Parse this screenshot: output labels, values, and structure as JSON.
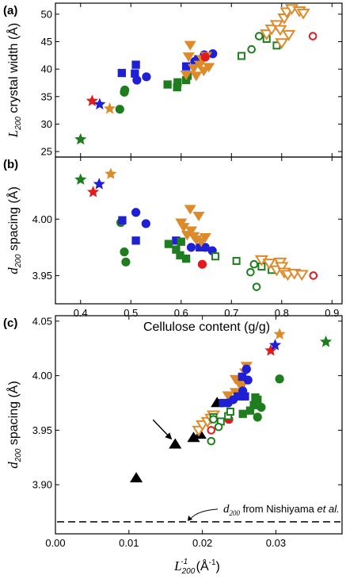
{
  "chart_data": [
    {
      "panel_label": "(a)",
      "type": "scatter",
      "ylabel_main": "L",
      "ylabel_sub": "200",
      "ylabel_rest": " crystal width (Å)",
      "xlim": [
        0.35,
        0.92
      ],
      "ylim": [
        24,
        52
      ],
      "xticks": [
        0.4,
        0.5,
        0.6,
        0.7,
        0.8,
        0.9
      ],
      "yticks": [
        25,
        30,
        35,
        40,
        45,
        50
      ],
      "series": [
        {
          "marker": "star",
          "color": "#1e7d1e",
          "fill": true,
          "points": [
            [
              0.4,
              27.2
            ]
          ]
        },
        {
          "marker": "star",
          "color": "#e31a1c",
          "fill": true,
          "points": [
            [
              0.423,
              34.2
            ]
          ]
        },
        {
          "marker": "star",
          "color": "#1f1fd6",
          "fill": true,
          "points": [
            [
              0.438,
              33.6
            ]
          ]
        },
        {
          "marker": "star",
          "color": "#dd8a2b",
          "fill": true,
          "points": [
            [
              0.458,
              32.8
            ]
          ]
        },
        {
          "marker": "circle",
          "color": "#1e7d1e",
          "fill": true,
          "points": [
            [
              0.478,
              32.7
            ],
            [
              0.487,
              35.8
            ],
            [
              0.488,
              36.2
            ]
          ]
        },
        {
          "marker": "square",
          "color": "#1f1fd6",
          "fill": true,
          "points": [
            [
              0.482,
              39.3
            ],
            [
              0.51,
              40.8
            ],
            [
              0.508,
              39.2
            ],
            [
              0.61,
              40.5
            ],
            [
              0.634,
              41.8
            ]
          ]
        },
        {
          "marker": "circle",
          "color": "#1f1fd6",
          "fill": true,
          "points": [
            [
              0.512,
              38.0
            ],
            [
              0.531,
              38.6
            ],
            [
              0.627,
              41.4
            ],
            [
              0.646,
              42.6
            ],
            [
              0.663,
              42.8
            ]
          ]
        },
        {
          "marker": "square",
          "color": "#1e7d1e",
          "fill": true,
          "points": [
            [
              0.573,
              37.2
            ],
            [
              0.592,
              36.7
            ],
            [
              0.593,
              37.6
            ],
            [
              0.61,
              38.0
            ],
            [
              0.613,
              38.8
            ]
          ]
        },
        {
          "marker": "tri-down",
          "color": "#dd8a2b",
          "fill": true,
          "points": [
            [
              0.61,
              39.0
            ],
            [
              0.615,
              42.3
            ],
            [
              0.618,
              44.4
            ],
            [
              0.625,
              40.2
            ],
            [
              0.63,
              38.8
            ],
            [
              0.637,
              40.8
            ],
            [
              0.642,
              41.8
            ],
            [
              0.645,
              39.7
            ],
            [
              0.65,
              42.4
            ],
            [
              0.655,
              40.4
            ]
          ]
        },
        {
          "marker": "circle",
          "color": "#e31a1c",
          "fill": true,
          "points": [
            [
              0.648,
              42.2
            ]
          ]
        },
        {
          "marker": "square",
          "color": "#1e7d1e",
          "fill": false,
          "points": [
            [
              0.72,
              42.4
            ],
            [
              0.77,
              45.5
            ],
            [
              0.79,
              44.3
            ]
          ]
        },
        {
          "marker": "circle",
          "color": "#1e7d1e",
          "fill": false,
          "points": [
            [
              0.74,
              43.6
            ],
            [
              0.755,
              46.0
            ]
          ]
        },
        {
          "marker": "tri-down",
          "color": "#dd8a2b",
          "fill": false,
          "points": [
            [
              0.77,
              46.4
            ],
            [
              0.78,
              47.3
            ],
            [
              0.79,
              48.1
            ],
            [
              0.797,
              47.2
            ],
            [
              0.8,
              44.8
            ],
            [
              0.805,
              49.3
            ],
            [
              0.81,
              50.4
            ],
            [
              0.814,
              46.3
            ],
            [
              0.82,
              51.0
            ],
            [
              0.835,
              50.6
            ],
            [
              0.843,
              50.2
            ]
          ]
        },
        {
          "marker": "circle",
          "color": "#e31a1c",
          "fill": false,
          "points": [
            [
              0.862,
              46.0
            ]
          ]
        }
      ]
    },
    {
      "panel_label": "(b)",
      "type": "scatter",
      "ylabel_main": "d",
      "ylabel_sub": "200",
      "ylabel_rest": " spacing (Å)",
      "xlabel": "Cellulose content (g/g)",
      "xlim": [
        0.35,
        0.92
      ],
      "ylim": [
        3.925,
        4.055
      ],
      "xticks": [
        0.4,
        0.5,
        0.6,
        0.7,
        0.8,
        0.9
      ],
      "ytick_values": [
        3.95,
        4.0
      ],
      "ytick_labels": [
        "3.95",
        "4.00"
      ],
      "series": [
        {
          "marker": "star",
          "color": "#1e7d1e",
          "fill": true,
          "points": [
            [
              0.4,
              4.035
            ]
          ]
        },
        {
          "marker": "star",
          "color": "#e31a1c",
          "fill": true,
          "points": [
            [
              0.425,
              4.024
            ]
          ]
        },
        {
          "marker": "star",
          "color": "#1f1fd6",
          "fill": true,
          "points": [
            [
              0.437,
              4.031
            ]
          ]
        },
        {
          "marker": "star",
          "color": "#dd8a2b",
          "fill": true,
          "points": [
            [
              0.46,
              4.04
            ]
          ]
        },
        {
          "marker": "circle",
          "color": "#1e7d1e",
          "fill": true,
          "points": [
            [
              0.48,
              3.997
            ],
            [
              0.487,
              3.971
            ],
            [
              0.49,
              3.962
            ]
          ]
        },
        {
          "marker": "square",
          "color": "#1f1fd6",
          "fill": true,
          "points": [
            [
              0.483,
              3.999
            ],
            [
              0.51,
              3.981
            ],
            [
              0.59,
              3.981
            ],
            [
              0.637,
              3.975
            ],
            [
              0.645,
              3.975
            ]
          ]
        },
        {
          "marker": "circle",
          "color": "#1f1fd6",
          "fill": true,
          "points": [
            [
              0.51,
              4.006
            ],
            [
              0.53,
              3.996
            ],
            [
              0.62,
              3.975
            ],
            [
              0.648,
              3.975
            ],
            [
              0.662,
              3.972
            ]
          ]
        },
        {
          "marker": "square",
          "color": "#1e7d1e",
          "fill": true,
          "points": [
            [
              0.575,
              3.978
            ],
            [
              0.59,
              3.973
            ],
            [
              0.598,
              3.968
            ],
            [
              0.6,
              3.98
            ],
            [
              0.61,
              3.965
            ]
          ]
        },
        {
          "marker": "tri-down",
          "color": "#dd8a2b",
          "fill": true,
          "points": [
            [
              0.6,
              3.997
            ],
            [
              0.605,
              3.993
            ],
            [
              0.612,
              3.986
            ],
            [
              0.618,
              4.009
            ],
            [
              0.62,
              3.99
            ],
            [
              0.625,
              3.985
            ],
            [
              0.63,
              3.982
            ],
            [
              0.635,
              4.003
            ],
            [
              0.64,
              3.98
            ],
            [
              0.648,
              3.984
            ]
          ]
        },
        {
          "marker": "circle",
          "color": "#e31a1c",
          "fill": true,
          "points": [
            [
              0.642,
              3.96
            ]
          ]
        },
        {
          "marker": "square",
          "color": "#1e7d1e",
          "fill": false,
          "points": [
            [
              0.668,
              3.967
            ],
            [
              0.71,
              3.963
            ],
            [
              0.76,
              3.958
            ],
            [
              0.78,
              3.955
            ]
          ]
        },
        {
          "marker": "circle",
          "color": "#1e7d1e",
          "fill": false,
          "points": [
            [
              0.738,
              3.953
            ],
            [
              0.745,
              3.96
            ],
            [
              0.75,
              3.94
            ]
          ]
        },
        {
          "marker": "tri-down",
          "color": "#dd8a2b",
          "fill": false,
          "points": [
            [
              0.76,
              3.964
            ],
            [
              0.775,
              3.961
            ],
            [
              0.79,
              3.955
            ],
            [
              0.797,
              3.962
            ],
            [
              0.8,
              3.958
            ],
            [
              0.805,
              3.953
            ],
            [
              0.812,
              3.951
            ],
            [
              0.825,
              3.952
            ],
            [
              0.84,
              3.951
            ]
          ]
        },
        {
          "marker": "circle",
          "color": "#e31a1c",
          "fill": false,
          "points": [
            [
              0.863,
              3.95
            ]
          ]
        }
      ]
    },
    {
      "panel_label": "(c)",
      "type": "scatter",
      "ylabel_main": "d",
      "ylabel_sub": "200",
      "ylabel_rest": " spacing (Å)",
      "xlabel_main": "L",
      "xlabel_sub": "200",
      "xlabel_sup": "-1",
      "xlabel_rest": " (Å",
      "xlabel_sup2": "-1",
      "xlabel_end": ")",
      "xlim": [
        0.0,
        0.039
      ],
      "ylim": [
        3.855,
        4.055
      ],
      "xticks": [
        0.0,
        0.01,
        0.02,
        0.03
      ],
      "xtick_labels": [
        "0.00",
        "0.01",
        "0.02",
        "0.03"
      ],
      "ytick_values": [
        3.9,
        3.95,
        4.0,
        4.05
      ],
      "ytick_labels": [
        "3.90",
        "3.95",
        "4.00",
        "4.05"
      ],
      "reference_line": {
        "y": 3.866,
        "style": "dashed"
      },
      "annotation": {
        "text_main": "d",
        "text_sub": "200",
        "text_rest": " from Nishiyama ",
        "text_italic": "et al.",
        "text_tail": ""
      },
      "arrow_target": [
        0.0163,
        3.937
      ],
      "series": [
        {
          "marker": "tri-up",
          "color": "#000000",
          "fill": true,
          "points": [
            [
              0.011,
              3.906
            ],
            [
              0.0163,
              3.937
            ],
            [
              0.0188,
              3.943
            ],
            [
              0.0197,
              3.946
            ],
            [
              0.022,
              3.975
            ]
          ]
        },
        {
          "marker": "tri-down",
          "color": "#dd8a2b",
          "fill": true,
          "points": [
            [
              0.0235,
              3.982
            ],
            [
              0.0245,
              3.985
            ],
            [
              0.0253,
              3.99
            ],
            [
              0.026,
              4.009
            ],
            [
              0.0245,
              3.997
            ],
            [
              0.0258,
              4.003
            ],
            [
              0.025,
              3.993
            ]
          ]
        },
        {
          "marker": "tri-down",
          "color": "#dd8a2b",
          "fill": false,
          "points": [
            [
              0.0195,
              3.95
            ],
            [
              0.02,
              3.955
            ],
            [
              0.0207,
              3.958
            ],
            [
              0.0212,
              3.961
            ],
            [
              0.0215,
              3.964
            ]
          ]
        },
        {
          "marker": "circle",
          "color": "#1f1fd6",
          "fill": true,
          "points": [
            [
              0.0235,
              3.975
            ],
            [
              0.0242,
              3.978
            ],
            [
              0.0255,
              3.986
            ],
            [
              0.0262,
              3.996
            ],
            [
              0.026,
              4.006
            ]
          ]
        },
        {
          "marker": "square",
          "color": "#1f1fd6",
          "fill": true,
          "points": [
            [
              0.0228,
              3.975
            ],
            [
              0.0248,
              3.981
            ],
            [
              0.0254,
              3.999
            ],
            [
              0.0258,
              3.981
            ]
          ]
        },
        {
          "marker": "square",
          "color": "#1e7d1e",
          "fill": true,
          "points": [
            [
              0.0255,
              3.965
            ],
            [
              0.0265,
              3.968
            ],
            [
              0.027,
              3.973
            ],
            [
              0.0275,
              3.978
            ],
            [
              0.0272,
              3.98
            ]
          ]
        },
        {
          "marker": "circle",
          "color": "#1e7d1e",
          "fill": true,
          "points": [
            [
              0.0275,
              3.962
            ],
            [
              0.028,
              3.971
            ],
            [
              0.0305,
              3.997
            ]
          ]
        },
        {
          "marker": "circle",
          "color": "#e31a1c",
          "fill": true,
          "points": [
            [
              0.0236,
              3.96
            ]
          ]
        },
        {
          "marker": "square",
          "color": "#1e7d1e",
          "fill": false,
          "points": [
            [
              0.0215,
              3.962
            ],
            [
              0.0225,
              3.958
            ],
            [
              0.0235,
              3.963
            ],
            [
              0.0238,
              3.967
            ]
          ]
        },
        {
          "marker": "circle",
          "color": "#1e7d1e",
          "fill": false,
          "points": [
            [
              0.0212,
              3.94
            ],
            [
              0.0222,
              3.953
            ],
            [
              0.0215,
              3.96
            ]
          ]
        },
        {
          "marker": "circle",
          "color": "#e31a1c",
          "fill": false,
          "points": [
            [
              0.0212,
              3.95
            ]
          ]
        },
        {
          "marker": "star",
          "color": "#e31a1c",
          "fill": true,
          "points": [
            [
              0.0293,
              4.023
            ]
          ]
        },
        {
          "marker": "star",
          "color": "#1f1fd6",
          "fill": true,
          "points": [
            [
              0.0299,
              4.028
            ]
          ]
        },
        {
          "marker": "star",
          "color": "#dd8a2b",
          "fill": true,
          "points": [
            [
              0.0305,
              4.038
            ]
          ]
        },
        {
          "marker": "star",
          "color": "#1e7d1e",
          "fill": true,
          "points": [
            [
              0.0368,
              4.031
            ]
          ]
        }
      ]
    }
  ]
}
